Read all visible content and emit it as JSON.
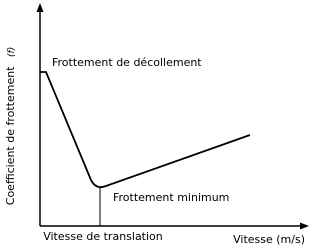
{
  "axes": {
    "y_label": "Coefficient de frottement",
    "y_symbol": "(f)",
    "x_label": "Vitesse (m/s)"
  },
  "annotations": {
    "breakaway": "Frottement de décollement",
    "minimum": "Frottement minimum",
    "transition_speed": "Vitesse de translation"
  }
}
